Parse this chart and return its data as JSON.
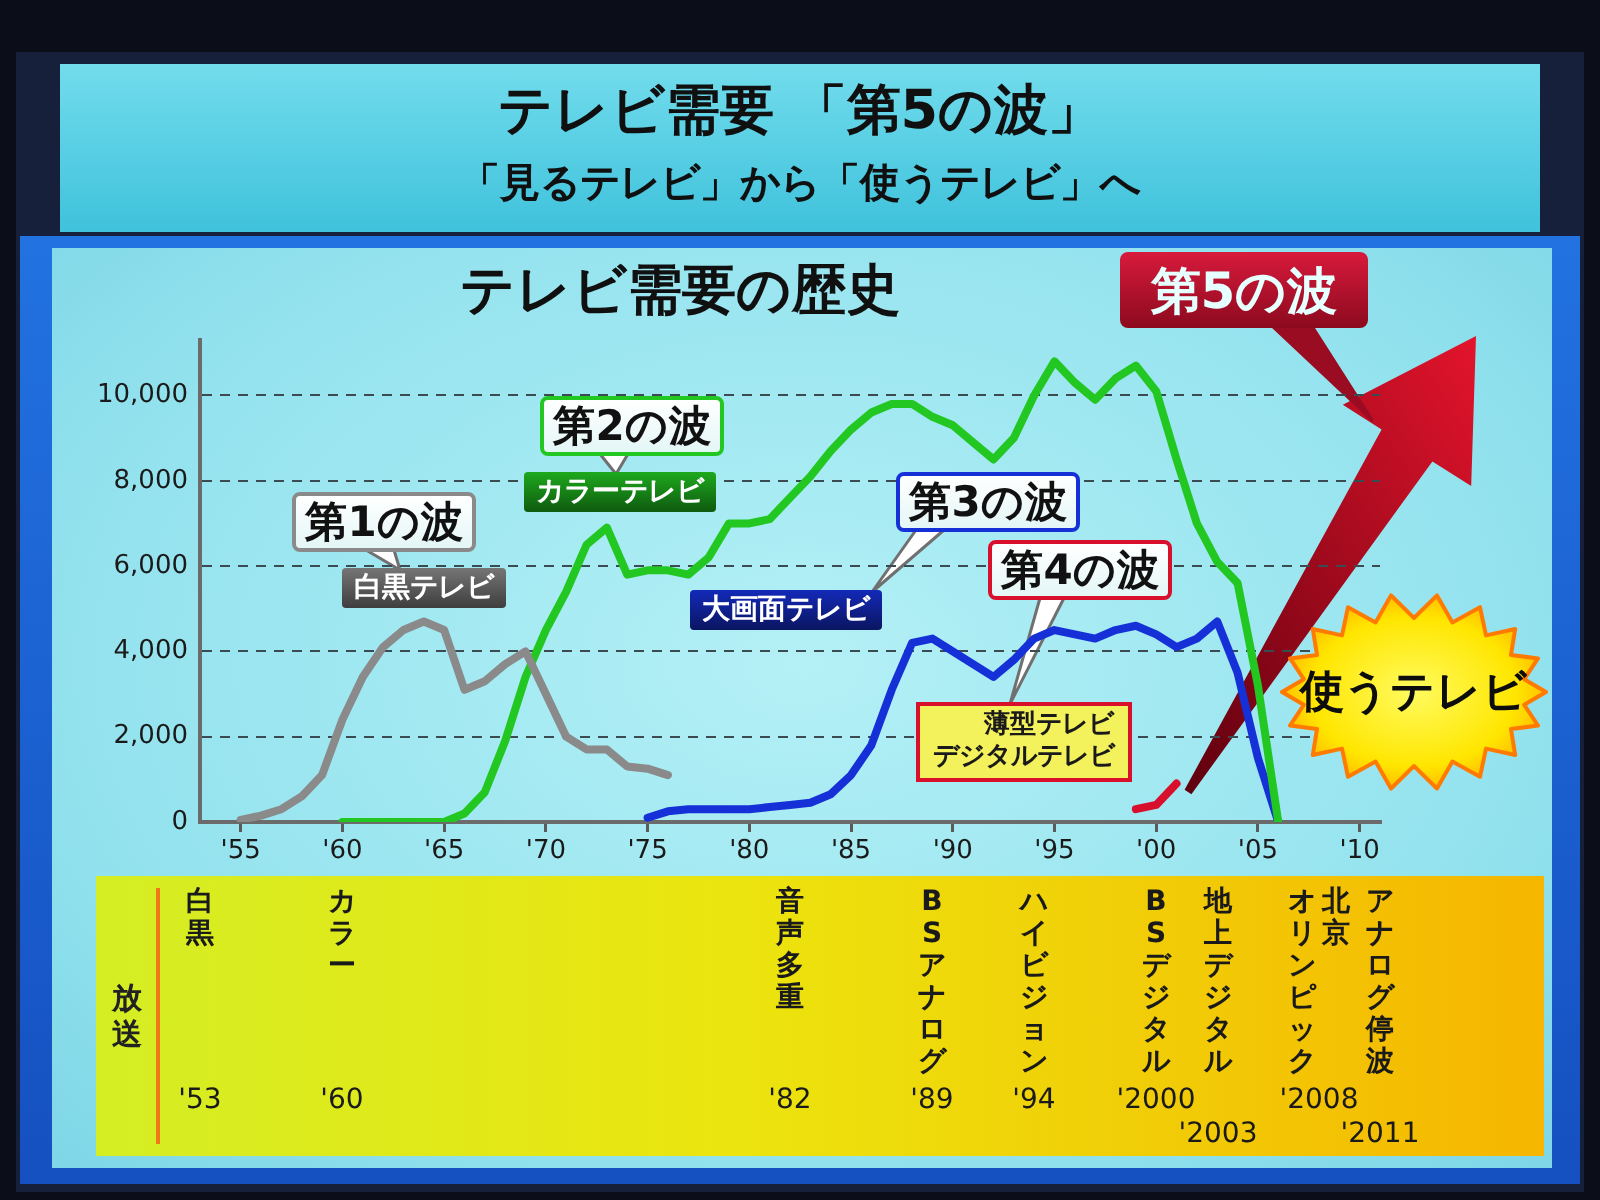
{
  "chart_data": {
    "type": "line",
    "title": "テレビ需要 「第5の波」",
    "subtitle": "「見るテレビ」から「使うテレビ」へ",
    "annotations": [
      "テレビ需要の歴史",
      "第1の波",
      "第2の波",
      "第3の波",
      "第4の波",
      "第5の波",
      "使うテレビ",
      "放送",
      "白黒",
      "'53",
      "カラー",
      "'60",
      "音声多重",
      "'82",
      "BSアナログ",
      "'89",
      "ハイビジョン",
      "'94",
      "BSデジタル",
      "'2000",
      "地上デジタル",
      "'2003",
      "北京",
      "オリンピック",
      "'2008",
      "アナログ停波",
      "'2011"
    ],
    "xlim": [
      1953,
      2011
    ],
    "xticks": [
      {
        "value": 1955,
        "label": "'55"
      },
      {
        "value": 1960,
        "label": "'60"
      },
      {
        "value": 1965,
        "label": "'65"
      },
      {
        "value": 1970,
        "label": "'70"
      },
      {
        "value": 1975,
        "label": "'75"
      },
      {
        "value": 1980,
        "label": "'80"
      },
      {
        "value": 1985,
        "label": "'85"
      },
      {
        "value": 1990,
        "label": "'90"
      },
      {
        "value": 1995,
        "label": "'95"
      },
      {
        "value": 2000,
        "label": "'00"
      },
      {
        "value": 2005,
        "label": "'05"
      },
      {
        "value": 2010,
        "label": "'10"
      }
    ],
    "ylim": [
      0,
      11300
    ],
    "yticks": [
      0,
      {
        "value": 2000,
        "label": "2,000"
      },
      {
        "value": 4000,
        "label": "4,000"
      },
      {
        "value": 6000,
        "label": "6,000"
      },
      {
        "value": 8000,
        "label": "8,000"
      },
      {
        "value": 10000,
        "label": "10,000"
      }
    ],
    "grid": "y",
    "series": [
      {
        "name": "白黒テレビ",
        "color": "#8a8a8a",
        "x": [
          1955,
          1956,
          1957,
          1958,
          1959,
          1960,
          1961,
          1962,
          1963,
          1964,
          1965,
          1966,
          1967,
          1968,
          1969,
          1970,
          1971,
          1972,
          1973,
          1974,
          1975,
          1976
        ],
        "values": [
          50,
          150,
          300,
          600,
          1100,
          2400,
          3400,
          4100,
          4500,
          4700,
          4500,
          3100,
          3300,
          3700,
          4000,
          3000,
          2000,
          1700,
          1700,
          1300,
          1250,
          1100
        ]
      },
      {
        "name": "カラーテレビ",
        "color": "#22c722",
        "x": [
          1960,
          1961,
          1962,
          1963,
          1964,
          1965,
          1966,
          1967,
          1968,
          1969,
          1970,
          1971,
          1972,
          1973,
          1974,
          1975,
          1976,
          1977,
          1978,
          1979,
          1980,
          1981,
          1982,
          1983,
          1984,
          1985,
          1986,
          1987,
          1988,
          1989,
          1990,
          1991,
          1992,
          1993,
          1994,
          1995,
          1996,
          1997,
          1998,
          1999,
          2000,
          2001,
          2002,
          2003,
          2004,
          2005,
          2006
        ],
        "values": [
          0,
          0,
          0,
          0,
          0,
          0,
          200,
          700,
          1900,
          3400,
          4500,
          5400,
          6500,
          6900,
          5800,
          5900,
          5900,
          5800,
          6200,
          7000,
          7000,
          7100,
          7600,
          8100,
          8700,
          9200,
          9600,
          9800,
          9800,
          9500,
          9300,
          8900,
          8500,
          9000,
          10000,
          10800,
          10300,
          9900,
          10400,
          10700,
          10100,
          8500,
          7000,
          6100,
          5600,
          3200,
          0
        ]
      },
      {
        "name": "大画面テレビ",
        "color": "#1630d8",
        "x": [
          1975,
          1976,
          1977,
          1978,
          1979,
          1980,
          1981,
          1982,
          1983,
          1984,
          1985,
          1986,
          1987,
          1988,
          1989,
          1990,
          1991,
          1992,
          1993,
          1994,
          1995,
          1996,
          1997,
          1998,
          1999,
          2000,
          2001,
          2002,
          2003,
          2004,
          2005,
          2006
        ],
        "values": [
          100,
          250,
          300,
          300,
          300,
          300,
          350,
          400,
          450,
          650,
          1100,
          1800,
          3100,
          4200,
          4300,
          4000,
          3700,
          3400,
          3800,
          4300,
          4500,
          4400,
          4300,
          4500,
          4600,
          4400,
          4100,
          4300,
          4700,
          3500,
          1500,
          0
        ]
      },
      {
        "name": "薄型テレビデジタルテレビ",
        "color": "#d8102c",
        "x": [
          1999,
          2000,
          2001
        ],
        "values": [
          300,
          400,
          900
        ]
      }
    ]
  }
}
